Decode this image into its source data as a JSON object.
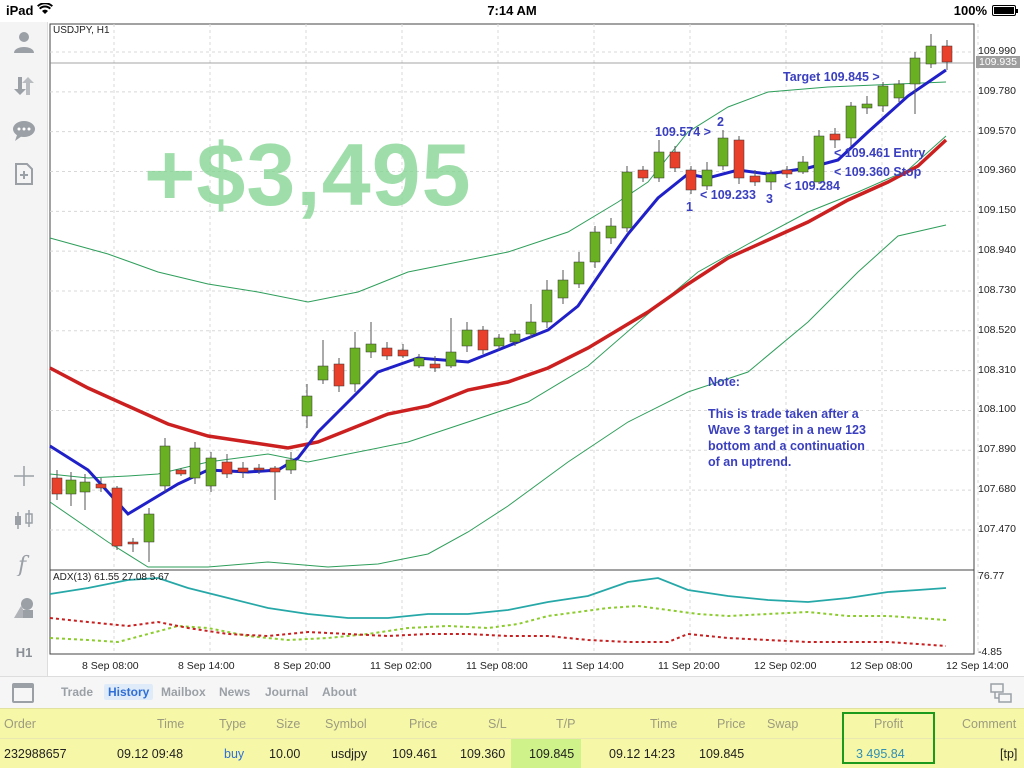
{
  "status_bar": {
    "device": "iPad",
    "time": "7:14 AM",
    "battery": "100%"
  },
  "chart": {
    "symbol_label": "USDJPY, H1",
    "adx_label": "ADX(13) 61.55 27.08 5.67",
    "profit_overlay": "+$3,495",
    "current_price": "109.935",
    "y_labels": [
      "109.990",
      "109.780",
      "109.570",
      "109.360",
      "109.150",
      "108.940",
      "108.730",
      "108.520",
      "108.310",
      "108.100",
      "107.890",
      "107.680",
      "107.470"
    ],
    "adx_labels": [
      "76.77",
      "-4.85"
    ],
    "x_labels": [
      "8 Sep 08:00",
      "8 Sep 14:00",
      "8 Sep 20:00",
      "11 Sep 02:00",
      "11 Sep 08:00",
      "11 Sep 14:00",
      "11 Sep 20:00",
      "12 Sep 02:00",
      "12 Sep 08:00",
      "12 Sep 14:00"
    ],
    "annotations": {
      "target": "Target 109.845 >",
      "p1574": "109.574 >",
      "w2": "2",
      "w1": "1",
      "p1233": "< 109.233",
      "w3": "3",
      "p1284": "< 109.284",
      "entry": "< 109.461 Entry",
      "stop": "< 109.360 Stop"
    },
    "note": {
      "title": "Note:",
      "lines": [
        "This is trade taken after a",
        "Wave 3 target in a new 123",
        "bottom and a continuation",
        "of an uptrend."
      ]
    },
    "colors": {
      "bull": "#6ab023",
      "bear": "#e8402a",
      "ma_fast": "#2020c8",
      "ma_slow": "#cc2020",
      "band": "#2e9e5a",
      "adx_main": "#27a8a8",
      "adx_plus": "#8ccc2e",
      "adx_minus": "#c82020"
    }
  },
  "left_toolbar": {
    "icons": [
      "account-icon",
      "trade-icon",
      "chat-icon",
      "new-document-icon",
      "crosshair-icon",
      "chart-type-icon",
      "indicators-icon",
      "objects-icon",
      "timeframe-icon"
    ],
    "timeframe": "H1"
  },
  "tabs": [
    {
      "label": "Trade"
    },
    {
      "label": "History"
    },
    {
      "label": "Mailbox"
    },
    {
      "label": "News"
    },
    {
      "label": "Journal"
    },
    {
      "label": "About"
    }
  ],
  "table": {
    "headers": {
      "order": "Order",
      "time": "Time",
      "type": "Type",
      "size": "Size",
      "symbol": "Symbol",
      "price": "Price",
      "sl": "S/L",
      "tp": "T/P",
      "time2": "Time",
      "price2": "Price",
      "swap": "Swap",
      "profit": "Profit",
      "comment": "Comment"
    },
    "row": {
      "order": "232988657",
      "time": "09.12 09:48",
      "type": "buy",
      "size": "10.00",
      "symbol": "usdjpy",
      "price": "109.461",
      "sl": "109.360",
      "tp": "109.845",
      "time2": "09.12 14:23",
      "price2": "109.845",
      "swap": "",
      "profit": "3 495.84",
      "comment": "[tp]"
    }
  }
}
